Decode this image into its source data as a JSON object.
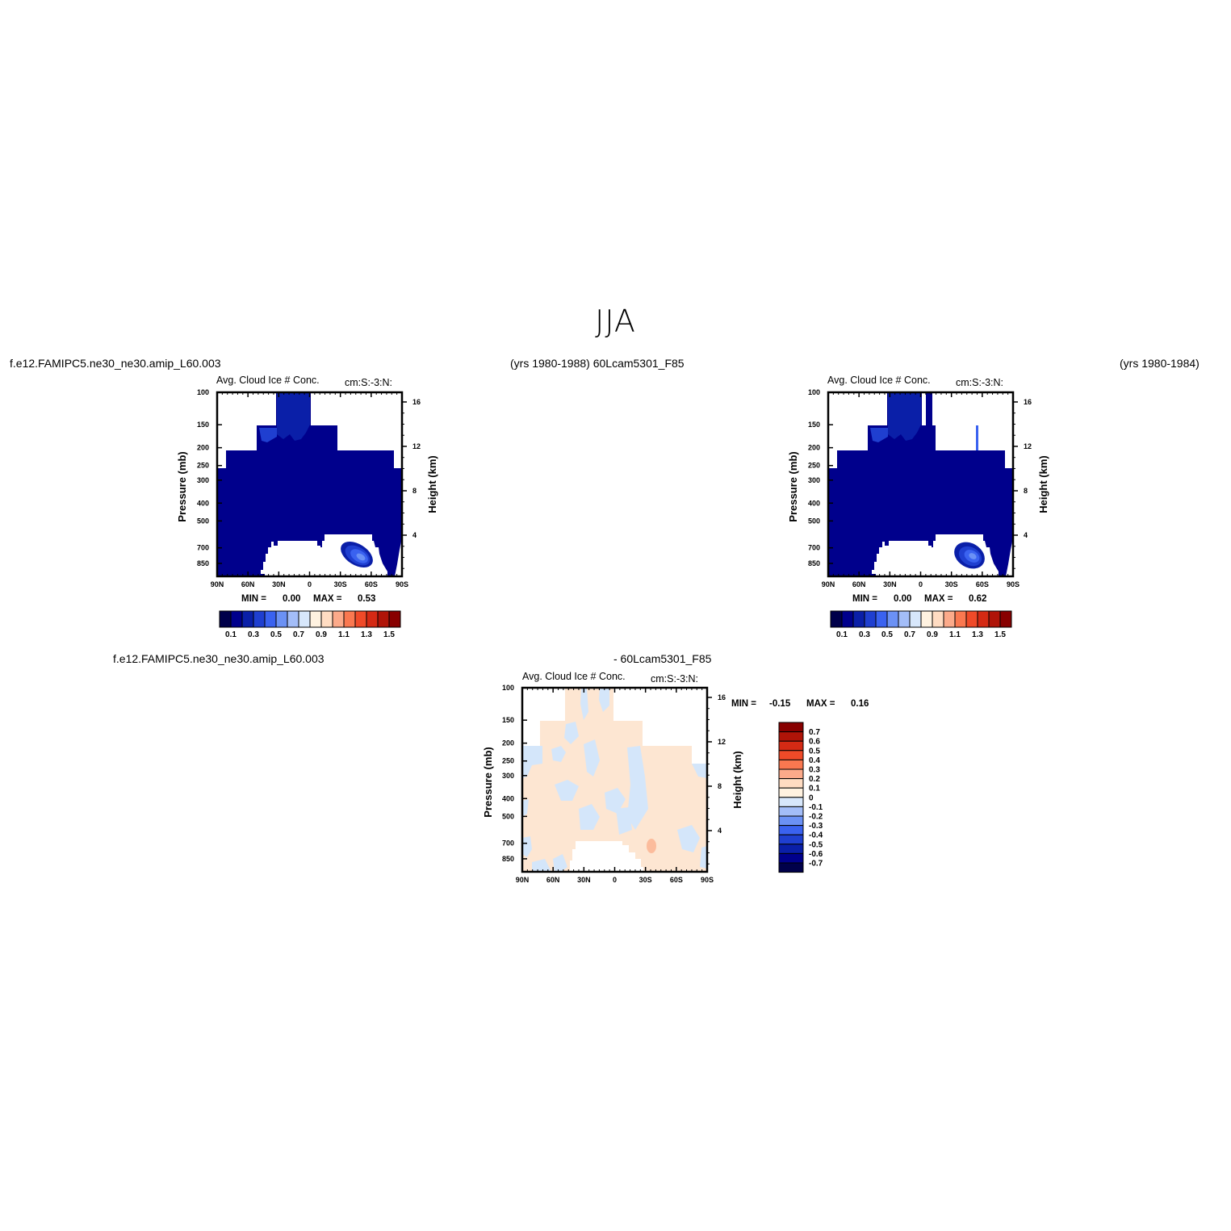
{
  "figure": {
    "title": "JJA",
    "top_left_label": "f.e12.FAMIPC5.ne30_ne30.amip_L60.003",
    "top_mid_label": "(yrs 1980-1988)  60Lcam5301_F85",
    "top_right_label": "(yrs 1980-1984)",
    "diff_left_label": "f.e12.FAMIPC5.ne30_ne30.amip_L60.003",
    "diff_right_label": "- 60Lcam5301_F85"
  },
  "colors": {
    "deep_blue": "#00008c",
    "blue2": "#0a1fa8",
    "blue3": "#1f3fd0",
    "blue4": "#3a62f0",
    "blue5": "#6b91f5",
    "blue6": "#a3bdf8",
    "blue7": "#d7e7fb",
    "cream": "#fff2e0",
    "peach": "#ffdcc2",
    "salmon": "#fcaa8a",
    "orange": "#fa7850",
    "red1": "#f04a28",
    "red2": "#d52a14",
    "red3": "#b01408",
    "darkred": "#880000"
  },
  "chart_data": [
    {
      "type": "heatmap",
      "panel": "left",
      "title": "Avg. Cloud Ice # Conc.",
      "units": "cm:S:-3:N:",
      "xlabel": "",
      "ylabel": "Pressure (mb)",
      "ylabel_right": "Height (km)",
      "x_ticks": [
        "90N",
        "60N",
        "30N",
        "0",
        "30S",
        "60S",
        "90S"
      ],
      "y_ticks": [
        "100",
        "150",
        "200",
        "250",
        "300",
        "400",
        "500",
        "700",
        "850"
      ],
      "y_right_ticks": [
        "16",
        "12",
        "8",
        "4"
      ],
      "ylim": [
        100,
        1000
      ],
      "min_label": "MIN =",
      "min": "0.00",
      "max_label": "MAX =",
      "max": "0.53",
      "colorbar_labels": [
        "0.1",
        "0.3",
        "0.5",
        "0.7",
        "0.9",
        "1.1",
        "1.3",
        "1.5"
      ]
    },
    {
      "type": "heatmap",
      "panel": "right",
      "title": "Avg. Cloud Ice # Conc.",
      "units": "cm:S:-3:N:",
      "xlabel": "",
      "ylabel": "Pressure (mb)",
      "ylabel_right": "Height (km)",
      "x_ticks": [
        "90N",
        "60N",
        "30N",
        "0",
        "30S",
        "60S",
        "90S"
      ],
      "y_ticks": [
        "100",
        "150",
        "200",
        "250",
        "300",
        "400",
        "500",
        "700",
        "850"
      ],
      "y_right_ticks": [
        "16",
        "12",
        "8",
        "4"
      ],
      "ylim": [
        100,
        1000
      ],
      "min_label": "MIN =",
      "min": "0.00",
      "max_label": "MAX =",
      "max": "0.62",
      "colorbar_labels": [
        "0.1",
        "0.3",
        "0.5",
        "0.7",
        "0.9",
        "1.1",
        "1.3",
        "1.5"
      ]
    },
    {
      "type": "heatmap",
      "panel": "difference",
      "title": "Avg. Cloud Ice # Conc.",
      "units": "cm:S:-3:N:",
      "xlabel": "",
      "ylabel": "Pressure (mb)",
      "ylabel_right": "Height (km)",
      "x_ticks": [
        "90N",
        "60N",
        "30N",
        "0",
        "30S",
        "60S",
        "90S"
      ],
      "y_ticks": [
        "100",
        "150",
        "200",
        "250",
        "300",
        "400",
        "500",
        "700",
        "850"
      ],
      "y_right_ticks": [
        "16",
        "12",
        "8",
        "4"
      ],
      "ylim": [
        100,
        1000
      ],
      "min_label": "MIN =",
      "min": "-0.15",
      "max_label": "MAX =",
      "max": "0.16",
      "colorbar_labels": [
        "0.7",
        "0.6",
        "0.5",
        "0.4",
        "0.3",
        "0.2",
        "0.1",
        "0",
        "-0.1",
        "-0.2",
        "-0.3",
        "-0.4",
        "-0.5",
        "-0.6",
        "-0.7"
      ]
    }
  ]
}
